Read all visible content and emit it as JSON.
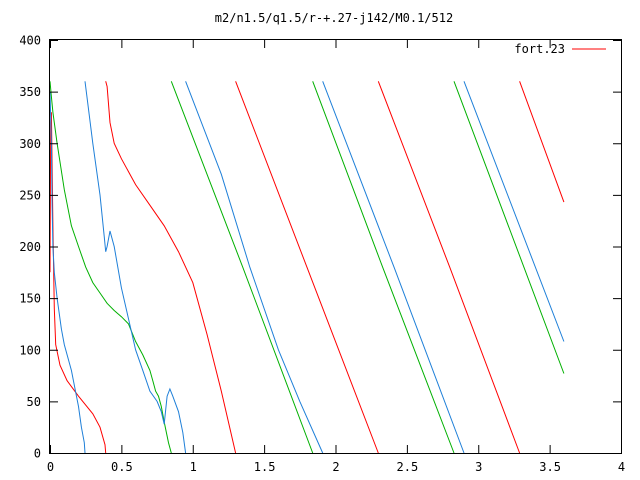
{
  "chart_data": {
    "type": "line",
    "title": "m2/n1.5/q1.5/r-+.27-j142/M0.1/512",
    "xlabel": "",
    "ylabel": "",
    "xlim": [
      0,
      4
    ],
    "ylim": [
      0,
      400
    ],
    "grid": false,
    "legend": {
      "position": "top-right",
      "entries": [
        "fort.23"
      ]
    },
    "x_ticks": [
      {
        "value": 0,
        "label": "0"
      },
      {
        "value": 0.5,
        "label": "0.5"
      },
      {
        "value": 1,
        "label": "1"
      },
      {
        "value": 1.5,
        "label": "1.5"
      },
      {
        "value": 2,
        "label": "2"
      },
      {
        "value": 2.5,
        "label": "2.5"
      },
      {
        "value": 3,
        "label": "3"
      },
      {
        "value": 3.5,
        "label": "3.5"
      },
      {
        "value": 4,
        "label": "4"
      }
    ],
    "y_ticks": [
      {
        "value": 0,
        "label": "0"
      },
      {
        "value": 50,
        "label": "50"
      },
      {
        "value": 100,
        "label": "100"
      },
      {
        "value": 150,
        "label": "150"
      },
      {
        "value": 200,
        "label": "200"
      },
      {
        "value": 250,
        "label": "250"
      },
      {
        "value": 300,
        "label": "300"
      },
      {
        "value": 350,
        "label": "350"
      },
      {
        "value": 400,
        "label": "400"
      }
    ],
    "series": [
      {
        "name": "fort.23",
        "color": "#ff0000",
        "points": [
          [
            0,
            175
          ],
          [
            0.005,
            320
          ],
          [
            0.01,
            330
          ],
          [
            0.02,
            220
          ],
          [
            0.03,
            140
          ],
          [
            0.04,
            105
          ],
          [
            0.07,
            85
          ],
          [
            0.12,
            70
          ],
          [
            0.2,
            55
          ],
          [
            0.3,
            38
          ],
          [
            0.35,
            25
          ],
          [
            0.385,
            8
          ],
          [
            0.39,
            0
          ],
          null,
          [
            0.39,
            360
          ],
          [
            0.4,
            355
          ],
          [
            0.42,
            320
          ],
          [
            0.45,
            300
          ],
          [
            0.5,
            285
          ],
          [
            0.6,
            260
          ],
          [
            0.7,
            240
          ],
          [
            0.8,
            220
          ],
          [
            0.9,
            195
          ],
          [
            1.0,
            165
          ],
          [
            1.1,
            115
          ],
          [
            1.2,
            60
          ],
          [
            1.3,
            0
          ],
          null,
          [
            1.3,
            360
          ],
          [
            1.8,
            180
          ],
          [
            2.3,
            0
          ],
          null,
          [
            2.3,
            360
          ],
          [
            2.8,
            180
          ],
          [
            3.29,
            0
          ],
          null,
          [
            3.29,
            360
          ],
          [
            3.6,
            243
          ]
        ]
      },
      {
        "name": "",
        "color": "#00b000",
        "points": [
          [
            0,
            360
          ],
          [
            0.01,
            345
          ],
          [
            0.02,
            330
          ],
          [
            0.05,
            300
          ],
          [
            0.1,
            255
          ],
          [
            0.15,
            220
          ],
          [
            0.2,
            200
          ],
          [
            0.25,
            180
          ],
          [
            0.3,
            165
          ],
          [
            0.35,
            155
          ],
          [
            0.4,
            145
          ],
          [
            0.45,
            138
          ],
          [
            0.5,
            132
          ],
          [
            0.55,
            125
          ],
          [
            0.6,
            108
          ],
          [
            0.65,
            95
          ],
          [
            0.7,
            80
          ],
          [
            0.72,
            70
          ],
          [
            0.74,
            60
          ],
          [
            0.76,
            55
          ],
          [
            0.78,
            45
          ],
          [
            0.8,
            30
          ],
          [
            0.83,
            10
          ],
          [
            0.85,
            0
          ],
          null,
          [
            0.85,
            360
          ],
          [
            1.35,
            180
          ],
          [
            1.84,
            0
          ],
          null,
          [
            1.84,
            360
          ],
          [
            2.33,
            180
          ],
          [
            2.83,
            0
          ],
          null,
          [
            2.83,
            360
          ],
          [
            3.6,
            77
          ]
        ]
      },
      {
        "name": "",
        "color": "#1e7fd8",
        "points": [
          [
            0,
            350
          ],
          [
            0.01,
            300
          ],
          [
            0.015,
            240
          ],
          [
            0.02,
            200
          ],
          [
            0.03,
            175
          ],
          [
            0.05,
            150
          ],
          [
            0.08,
            120
          ],
          [
            0.1,
            105
          ],
          [
            0.15,
            80
          ],
          [
            0.2,
            45
          ],
          [
            0.22,
            25
          ],
          [
            0.24,
            10
          ],
          [
            0.245,
            0
          ],
          null,
          [
            0.245,
            360
          ],
          [
            0.3,
            300
          ],
          [
            0.35,
            250
          ],
          [
            0.38,
            210
          ],
          [
            0.39,
            195
          ],
          [
            0.4,
            200
          ],
          [
            0.42,
            215
          ],
          [
            0.45,
            200
          ],
          [
            0.5,
            160
          ],
          [
            0.55,
            130
          ],
          [
            0.6,
            100
          ],
          [
            0.65,
            80
          ],
          [
            0.7,
            60
          ],
          [
            0.75,
            50
          ],
          [
            0.78,
            40
          ],
          [
            0.8,
            28
          ],
          [
            0.82,
            55
          ],
          [
            0.84,
            62
          ],
          [
            0.86,
            55
          ],
          [
            0.9,
            40
          ],
          [
            0.93,
            20
          ],
          [
            0.95,
            0
          ],
          null,
          [
            0.95,
            360
          ],
          [
            1.2,
            270
          ],
          [
            1.4,
            180
          ],
          [
            1.6,
            100
          ],
          [
            1.75,
            50
          ],
          [
            1.91,
            0
          ],
          null,
          [
            1.91,
            360
          ],
          [
            2.41,
            180
          ],
          [
            2.9,
            0
          ],
          null,
          [
            2.9,
            360
          ],
          [
            3.6,
            108
          ]
        ]
      }
    ]
  }
}
